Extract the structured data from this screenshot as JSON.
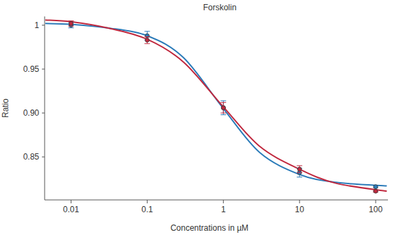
{
  "chart_data": {
    "type": "line",
    "title": "Forskolin",
    "x_label": "Concentrations in µM",
    "y_label": "Ratio",
    "log": "x",
    "grid": false,
    "xlim": [
      0.0045,
      145
    ],
    "xticks": [
      0.01,
      0.1,
      1,
      10,
      100
    ],
    "ylim": [
      0.801,
      1.01
    ],
    "yticks": [
      0.85,
      {
        "value": 0.9,
        "label": "0.90"
      },
      0.95,
      1
    ],
    "series": [
      {
        "type": "line",
        "color": "#2b7bb9",
        "line_style": "solid",
        "x": [
          0.0046,
          0.01,
          0.03,
          0.1,
          0.3,
          1,
          3,
          10,
          30,
          140
        ],
        "values": [
          1.002,
          1.001,
          0.997,
          0.988,
          0.963,
          0.905,
          0.855,
          0.83,
          0.821,
          0.817
        ]
      },
      {
        "type": "line",
        "color": "#c0283e",
        "line_style": "solid",
        "x": [
          0.0046,
          0.01,
          0.03,
          0.1,
          0.3,
          1,
          3,
          10,
          30,
          140
        ],
        "values": [
          1.006,
          1.004,
          0.997,
          0.984,
          0.958,
          0.907,
          0.862,
          0.836,
          0.82,
          0.811
        ]
      },
      {
        "type": "scatter",
        "color": "#2b7bb9",
        "marker": "circle",
        "x": [
          0.01,
          0.1,
          1,
          10,
          100
        ],
        "values": [
          1.0,
          0.988,
          0.906,
          0.832,
          0.816
        ],
        "errors": [
          0.003,
          0.005,
          0.008,
          0.005,
          0.001
        ]
      },
      {
        "type": "scatter",
        "color": "#c0283e",
        "marker": "circle",
        "x": [
          0.01,
          0.1,
          1,
          10,
          100
        ],
        "values": [
          1.002,
          0.983,
          0.906,
          0.836,
          0.811
        ],
        "errors": [
          0.003,
          0.004,
          0.006,
          0.004,
          0.001
        ]
      }
    ]
  }
}
